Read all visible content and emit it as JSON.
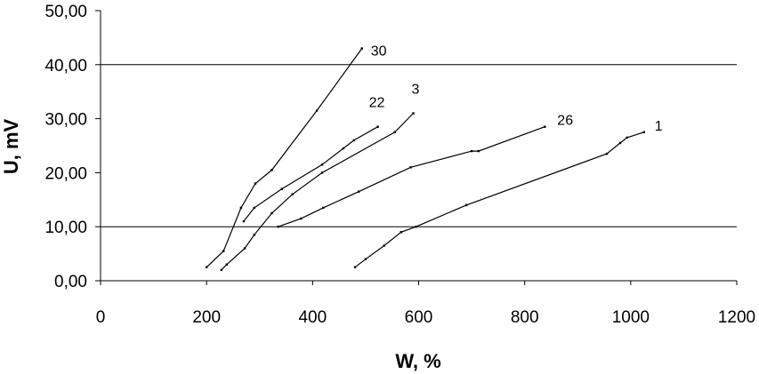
{
  "chart_data": {
    "type": "line",
    "xlabel": "W, %",
    "ylabel": "U, mV",
    "xlim": [
      0,
      1200
    ],
    "ylim": [
      0,
      50
    ],
    "x_ticks": [
      "0",
      "200",
      "400",
      "600",
      "800",
      "1000",
      "1200"
    ],
    "y_ticks": [
      "0,00",
      "10,00",
      "20,00",
      "30,00",
      "40,00",
      "50,00"
    ],
    "grid": "horizontal gridlines at 10,00 and 40,00",
    "legend": "none; series labels placed at line ends",
    "series": [
      {
        "name": "30",
        "x": [
          200,
          232,
          265,
          292,
          323,
          408,
          493
        ],
        "y": [
          2.5,
          5.5,
          13.5,
          18,
          20.5,
          31.5,
          43
        ]
      },
      {
        "name": "22",
        "x": [
          270,
          290,
          342,
          418,
          458,
          478,
          523
        ],
        "y": [
          11,
          13.5,
          17,
          21.5,
          24.5,
          26,
          28.5
        ]
      },
      {
        "name": "3",
        "x": [
          228,
          238,
          272,
          290,
          323,
          362,
          418,
          555,
          590
        ],
        "y": [
          2,
          3,
          6,
          8.5,
          12.5,
          16,
          20,
          27.5,
          31
        ]
      },
      {
        "name": "26",
        "x": [
          335,
          378,
          420,
          487,
          585,
          700,
          713,
          838
        ],
        "y": [
          10,
          11.5,
          13.5,
          16.5,
          21,
          24,
          24,
          28.5
        ]
      },
      {
        "name": "1",
        "x": [
          480,
          500,
          535,
          567,
          595,
          690,
          955,
          980,
          993,
          1025
        ],
        "y": [
          2.5,
          4,
          6.5,
          9,
          10,
          14,
          23.5,
          25.5,
          26.5,
          27.5
        ]
      }
    ]
  }
}
